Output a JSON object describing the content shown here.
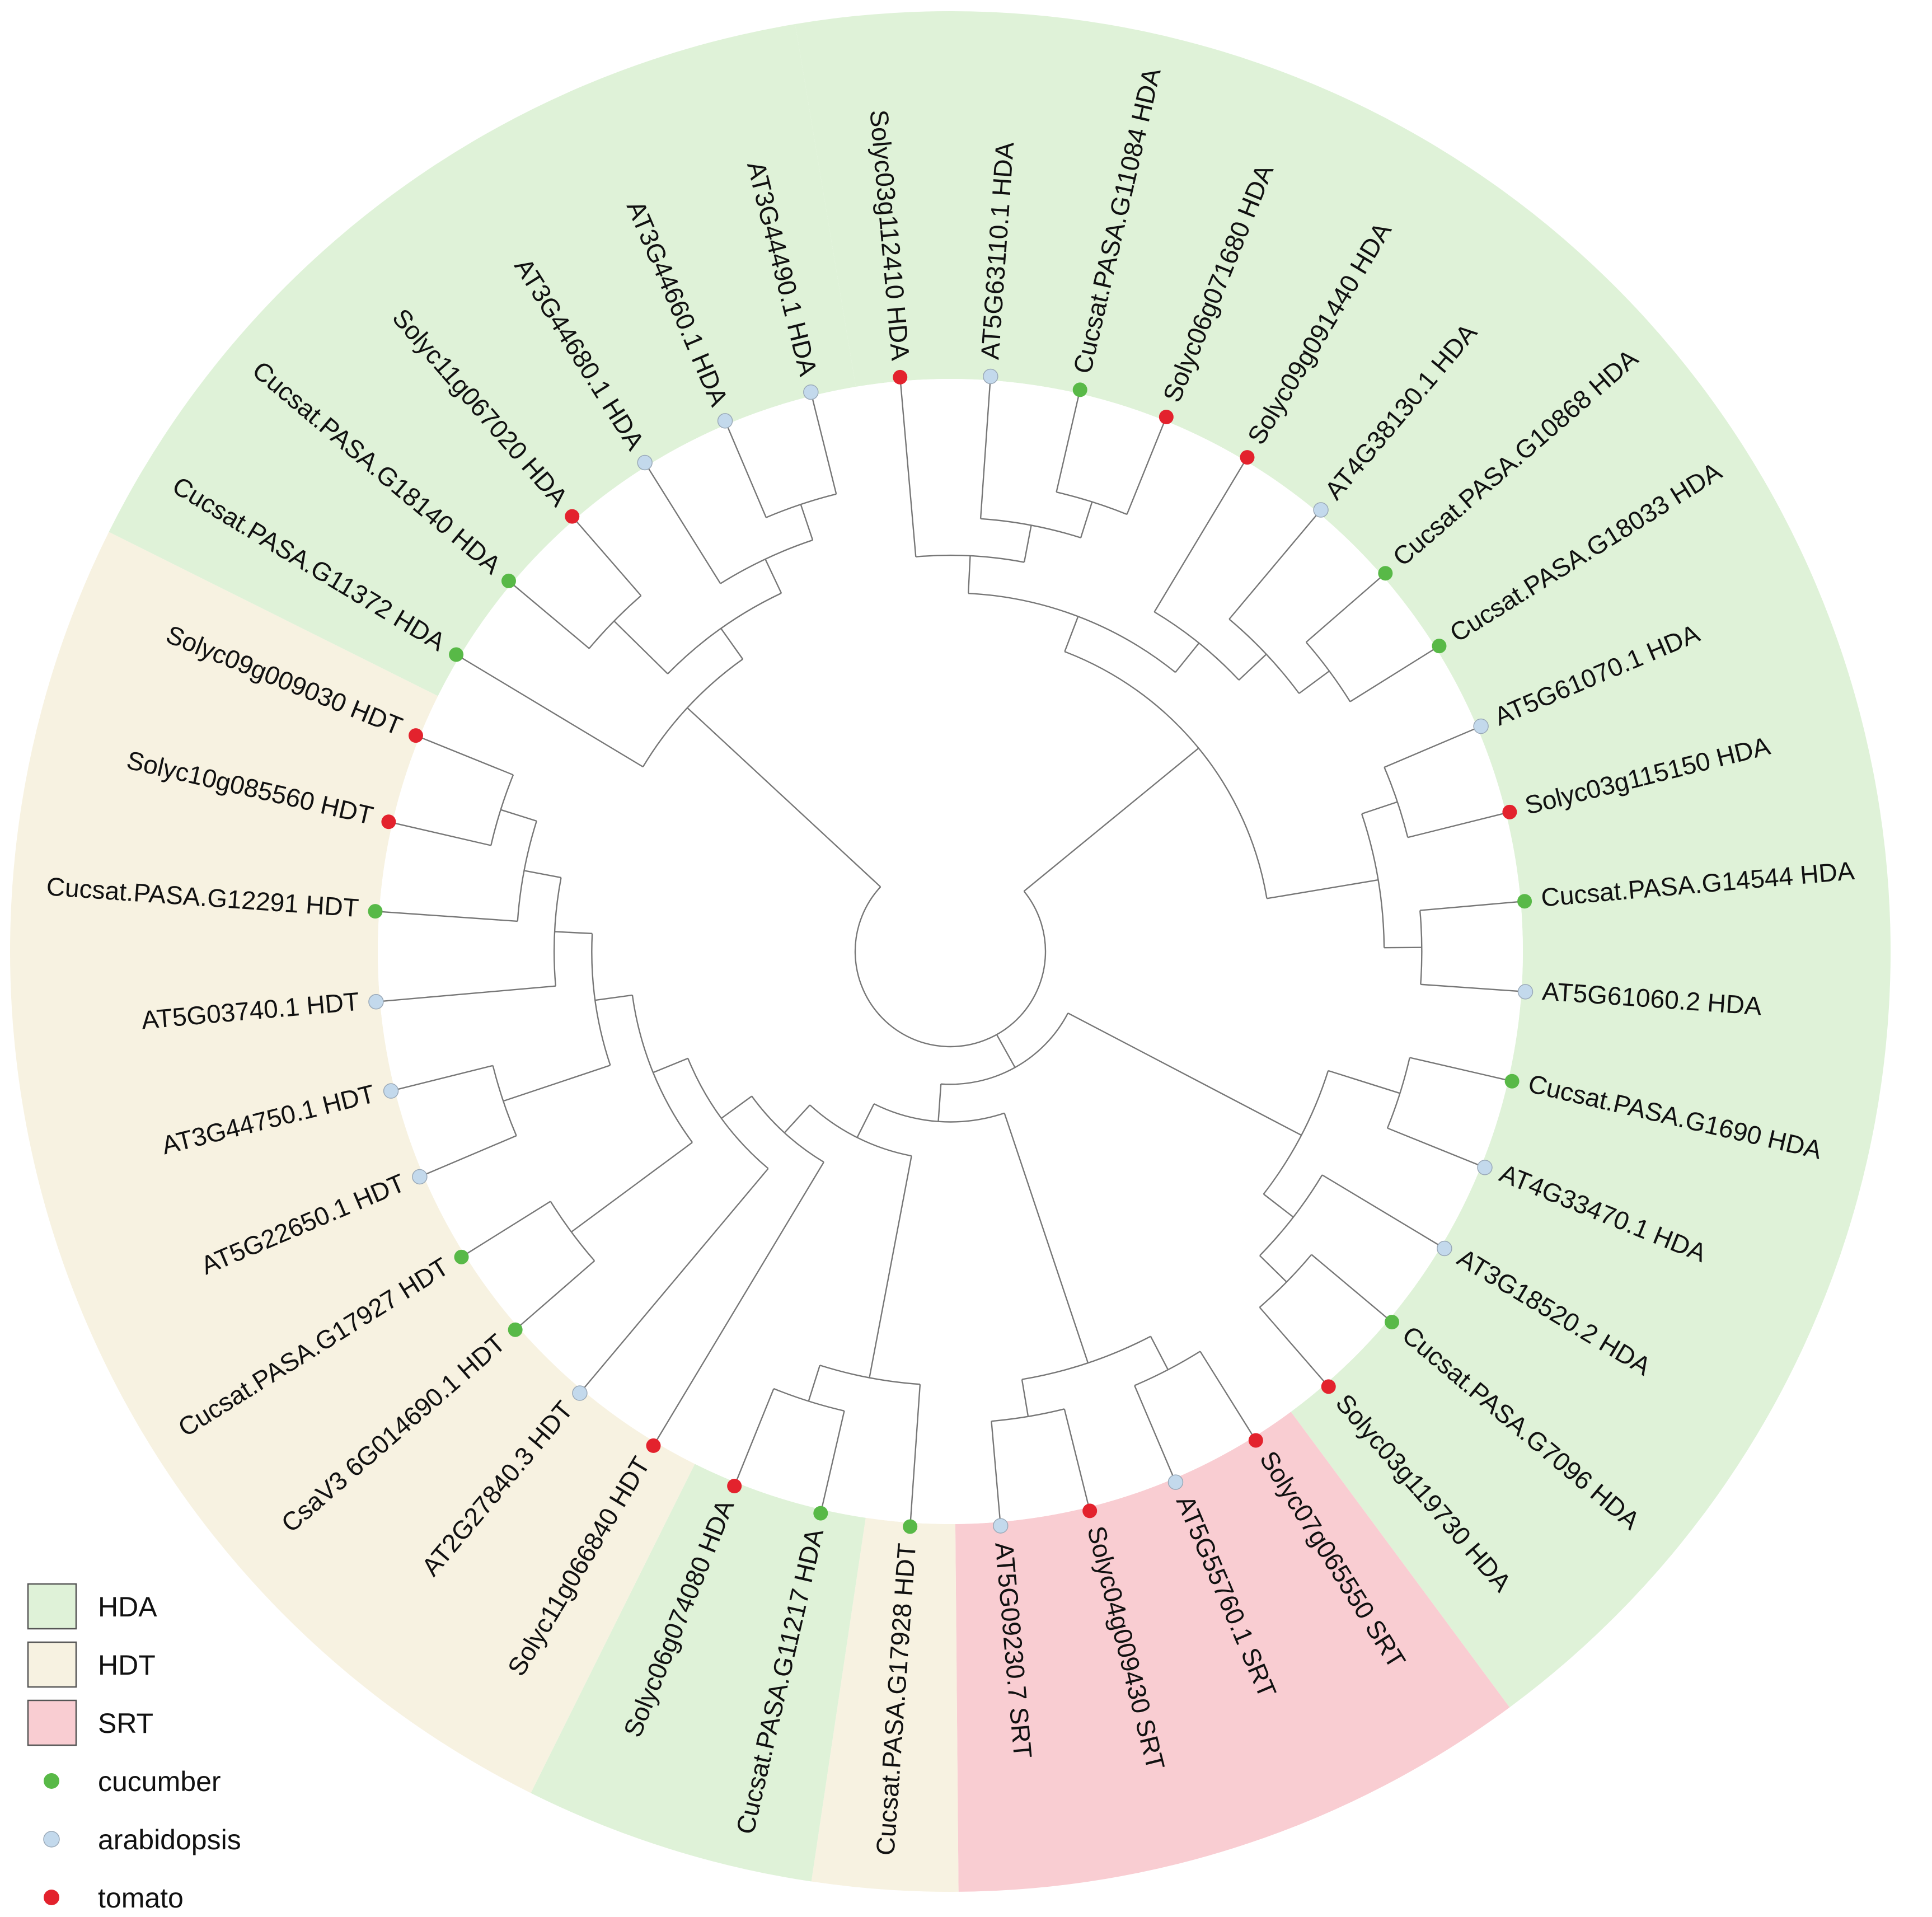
{
  "families": [
    {
      "id": "HDA",
      "label": "HDA",
      "color": "#dff2d8"
    },
    {
      "id": "HDT",
      "label": "HDT",
      "color": "#f7f2e1"
    },
    {
      "id": "SRT",
      "label": "SRT",
      "color": "#f9cdd2"
    }
  ],
  "species": [
    {
      "id": "cucumber",
      "label": "cucumber",
      "color": "#58b947"
    },
    {
      "id": "arabidopsis",
      "label": "arabidopsis",
      "color": "#c3d9ec"
    },
    {
      "id": "tomato",
      "label": "tomato",
      "color": "#e3222d"
    }
  ],
  "leaves": [
    {
      "label": "Solyc03g112410 HDA",
      "species": "tomato",
      "family": "HDA"
    },
    {
      "label": "AT5G63110.1 HDA",
      "species": "arabidopsis",
      "family": "HDA"
    },
    {
      "label": "Cucsat.PASA.G11084 HDA",
      "species": "cucumber",
      "family": "HDA"
    },
    {
      "label": "Solyc06g071680 HDA",
      "species": "tomato",
      "family": "HDA"
    },
    {
      "label": "Solyc09g091440 HDA",
      "species": "tomato",
      "family": "HDA"
    },
    {
      "label": "AT4G38130.1 HDA",
      "species": "arabidopsis",
      "family": "HDA"
    },
    {
      "label": "Cucsat.PASA.G10868 HDA",
      "species": "cucumber",
      "family": "HDA"
    },
    {
      "label": "Cucsat.PASA.G18033 HDA",
      "species": "cucumber",
      "family": "HDA"
    },
    {
      "label": "AT5G61070.1 HDA",
      "species": "arabidopsis",
      "family": "HDA"
    },
    {
      "label": "Solyc03g115150 HDA",
      "species": "tomato",
      "family": "HDA"
    },
    {
      "label": "Cucsat.PASA.G14544 HDA",
      "species": "cucumber",
      "family": "HDA"
    },
    {
      "label": "AT5G61060.2 HDA",
      "species": "arabidopsis",
      "family": "HDA"
    },
    {
      "label": "Cucsat.PASA.G1690 HDA",
      "species": "cucumber",
      "family": "HDA"
    },
    {
      "label": "AT4G33470.1 HDA",
      "species": "arabidopsis",
      "family": "HDA"
    },
    {
      "label": "AT3G18520.2 HDA",
      "species": "arabidopsis",
      "family": "HDA"
    },
    {
      "label": "Cucsat.PASA.G7096 HDA",
      "species": "cucumber",
      "family": "HDA"
    },
    {
      "label": "Solyc03g119730 HDA",
      "species": "tomato",
      "family": "HDA"
    },
    {
      "label": "Solyc07g065550 SRT",
      "species": "tomato",
      "family": "SRT"
    },
    {
      "label": "AT5G55760.1 SRT",
      "species": "arabidopsis",
      "family": "SRT"
    },
    {
      "label": "Solyc04g009430 SRT",
      "species": "tomato",
      "family": "SRT"
    },
    {
      "label": "AT5G09230.7 SRT",
      "species": "arabidopsis",
      "family": "SRT"
    },
    {
      "label": "Cucsat.PASA.G17928 HDT",
      "species": "cucumber",
      "family": "HDT"
    },
    {
      "label": "Cucsat.PASA.G11217 HDA",
      "species": "cucumber",
      "family": "HDA"
    },
    {
      "label": "Solyc06g074080 HDA",
      "species": "tomato",
      "family": "HDA"
    },
    {
      "label": "Solyc11g066840 HDT",
      "species": "tomato",
      "family": "HDT"
    },
    {
      "label": "AT2G27840.3 HDT",
      "species": "arabidopsis",
      "family": "HDT"
    },
    {
      "label": "CsaV3 6G014690.1 HDT",
      "species": "cucumber",
      "family": "HDT"
    },
    {
      "label": "Cucsat.PASA.G17927 HDT",
      "species": "cucumber",
      "family": "HDT"
    },
    {
      "label": "AT5G22650.1 HDT",
      "species": "arabidopsis",
      "family": "HDT"
    },
    {
      "label": "AT3G44750.1 HDT",
      "species": "arabidopsis",
      "family": "HDT"
    },
    {
      "label": "AT5G03740.1 HDT",
      "species": "arabidopsis",
      "family": "HDT"
    },
    {
      "label": "Cucsat.PASA.G12291 HDT",
      "species": "cucumber",
      "family": "HDT"
    },
    {
      "label": "Solyc10g085560 HDT",
      "species": "tomato",
      "family": "HDT"
    },
    {
      "label": "Solyc09g009030 HDT",
      "species": "tomato",
      "family": "HDT"
    },
    {
      "label": "Cucsat.PASA.G11372 HDA",
      "species": "cucumber",
      "family": "HDA"
    },
    {
      "label": "Cucsat.PASA.G18140 HDA",
      "species": "cucumber",
      "family": "HDA"
    },
    {
      "label": "Solyc11g067020 HDA",
      "species": "tomato",
      "family": "HDA"
    },
    {
      "label": "AT3G44680.1 HDA",
      "species": "arabidopsis",
      "family": "HDA"
    },
    {
      "label": "AT3G44660.1 HDA",
      "species": "arabidopsis",
      "family": "HDA"
    },
    {
      "label": "AT3G44490.1 HDA",
      "species": "arabidopsis",
      "family": "HDA"
    }
  ],
  "topology": [
    [
      [
        [
          [
            0
          ],
          [
            [
              1
            ],
            [
              [
                2
              ],
              [
                3
              ]
            ]
          ]
        ],
        [
          [
            4
          ],
          [
            [
              5
            ],
            [
              [
                6
              ],
              [
                7
              ]
            ]
          ]
        ]
      ],
      [
        [
          [
            8
          ],
          [
            9
          ]
        ],
        [
          [
            10
          ],
          [
            11
          ]
        ]
      ]
    ],
    [
      [
        [
          [
            12
          ],
          [
            13
          ]
        ],
        [
          [
            14
          ],
          [
            [
              15
            ],
            [
              16
            ]
          ]
        ]
      ],
      [
        [
          [
            [
              17
            ],
            [
              18
            ]
          ],
          [
            [
              19
            ],
            [
              20
            ]
          ]
        ],
        [
          [
            [
              21
            ],
            [
              [
                22
              ],
              [
                23
              ]
            ]
          ],
          [
            [
              24
            ],
            [
              [
                25
              ],
              [
                [
                  [
                    26
                  ],
                  [
                    27
                  ]
                ],
                [
                  [
                    [
                      28
                    ],
                    [
                      29
                    ]
                  ],
                  [
                    [
                      30
                    ],
                    [
                      [
                        31
                      ],
                      [
                        [
                          32
                        ],
                        [
                          33
                        ]
                      ]
                    ]
                  ]
                ]
              ]
            ]
          ]
        ]
      ]
    ],
    [
      [
        34
      ],
      [
        [
          [
            35
          ],
          [
            36
          ]
        ],
        [
          [
            37
          ],
          [
            [
              38
            ],
            [
              39
            ]
          ]
        ]
      ]
    ]
  ]
}
